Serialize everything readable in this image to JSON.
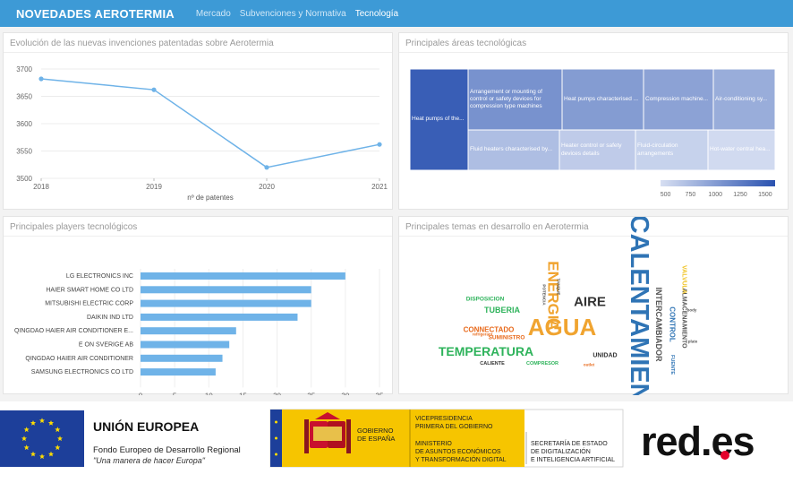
{
  "app": {
    "title": "NOVEDADES AEROTERMIA",
    "nav": [
      {
        "label": "Mercado",
        "active": false
      },
      {
        "label": "Subvenciones y Normativa",
        "active": false
      },
      {
        "label": "Tecnología",
        "active": true
      }
    ]
  },
  "panels": {
    "patents": {
      "title": "Evolución de las nuevas invenciones patentadas sobre Aerotermia"
    },
    "areas": {
      "title": "Principales áreas tecnológicas"
    },
    "players": {
      "title": "Principales players tecnológicos"
    },
    "topics": {
      "title": "Principales temas en desarrollo en Aerotermia"
    }
  },
  "colors": {
    "header": "#3d9ad6",
    "series": "#6fb3e8",
    "treemap_dark": "#2a52b0",
    "treemap_light": "#d7dff2"
  },
  "chart_data": [
    {
      "type": "line",
      "x": [
        "2018",
        "2019",
        "2020",
        "2021"
      ],
      "series": [
        {
          "values": [
            3682,
            3662,
            3520,
            3562
          ]
        }
      ],
      "xlabel": "nº de patentes",
      "ylabel": "",
      "ylim": [
        3500,
        3700
      ],
      "yticks": [
        "3700",
        "3650",
        "3600",
        "3550",
        "3500"
      ],
      "grid": true
    },
    {
      "type": "heatmap",
      "subtype": "treemap",
      "items": [
        {
          "label": "Heat pumps of the...",
          "value": 1500
        },
        {
          "label": "Arrangement or mounting of control or safety devices for compression type machines",
          "value": 1080
        },
        {
          "label": "Heat pumps characterised ...",
          "value": 1000
        },
        {
          "label": "Compression machine...",
          "value": 950
        },
        {
          "label": "Air-conditioning sy...",
          "value": 860
        },
        {
          "label": "Fluid heaters characterised by...",
          "value": 720
        },
        {
          "label": "Heater control or safety devices details",
          "value": 610
        },
        {
          "label": "Fluid-circulation arrangements",
          "value": 560
        },
        {
          "label": "Hot-water central hea...",
          "value": 490
        }
      ],
      "legend_ticks": [
        "500",
        "750",
        "1000",
        "1250",
        "1500"
      ],
      "range": [
        450,
        1600
      ]
    },
    {
      "type": "bar",
      "orientation": "horizontal",
      "categories": [
        "LG ELECTRONICS INC",
        "HAIER SMART HOME CO LTD",
        "MITSUBISHI ELECTRIC CORP",
        "DAIKIN IND LTD",
        "QINGDAO HAIER AIR CONDITIONER E...",
        "E ON SVERIGE AB",
        "QINGDAO HAIER AIR CONDITIONER",
        "SAMSUNG ELECTRONICS CO LTD"
      ],
      "values": [
        30,
        25,
        25,
        23,
        14,
        13,
        12,
        11
      ],
      "xlim": [
        0,
        35
      ],
      "xticks": [
        "0",
        "5",
        "10",
        "15",
        "20",
        "25",
        "30",
        "35"
      ],
      "xlabel": "nº de patentes",
      "grid": true
    }
  ],
  "wordcloud": {
    "words": [
      {
        "text": "CALENTAMIENTO",
        "color": "#2f74b5"
      },
      {
        "text": "AGUA",
        "color": "#f0a430"
      },
      {
        "text": "TEMPERATURA",
        "color": "#2eb35b"
      },
      {
        "text": "ENERGIA",
        "color": "#f0a430"
      },
      {
        "text": "AIRE",
        "color": "#333333"
      },
      {
        "text": "CONNECTADO",
        "color": "#e86a1c"
      },
      {
        "text": "INTERCAMBIADOR",
        "color": "#555555"
      },
      {
        "text": "CONTROL",
        "color": "#2f74b5"
      },
      {
        "text": "ALMACENAMIENTO",
        "color": "#555555"
      },
      {
        "text": "VALVULA",
        "color": "#f0c428"
      },
      {
        "text": "TUBERIA",
        "color": "#2eb35b"
      },
      {
        "text": "DISPOSICION",
        "color": "#2eb35b"
      },
      {
        "text": "SUMINISTRO",
        "color": "#e86a1c"
      },
      {
        "text": "UNIDAD",
        "color": "#333333"
      },
      {
        "text": "COMPRESOR",
        "color": "#2eb35b"
      },
      {
        "text": "CALIENTE",
        "color": "#333333"
      },
      {
        "text": "FUENTE",
        "color": "#2f74b5"
      },
      {
        "text": "POTENCIA",
        "color": "#555555"
      },
      {
        "text": "TANQUE",
        "color": "#555555"
      },
      {
        "text": "refrigerant",
        "color": "#e86a1c"
      },
      {
        "text": "outlet",
        "color": "#e86a1c"
      },
      {
        "text": "plate",
        "color": "#555555"
      },
      {
        "text": "body",
        "color": "#555555"
      }
    ]
  },
  "footer": {
    "eu_title": "UNIÓN EUROPEA",
    "eu_fund": "Fondo Europeo de Desarrollo Regional",
    "eu_motto": "\"Una manera de hacer Europa\"",
    "gov_line1": "GOBIERNO",
    "gov_line2": "DE ESPAÑA",
    "vice1": "VICEPRESIDENCIA",
    "vice2": "PRIMERA DEL GOBIERNO",
    "min1": "MINISTERIO",
    "min2": "DE ASUNTOS ECONÓMICOS",
    "min3": "Y TRANSFORMACIÓN DIGITAL",
    "sec1": "SECRETARÍA DE ESTADO",
    "sec2": "DE DIGITALIZACIÓN",
    "sec3": "E INTELIGENCIA ARTIFICIAL",
    "redes": "red.es"
  }
}
